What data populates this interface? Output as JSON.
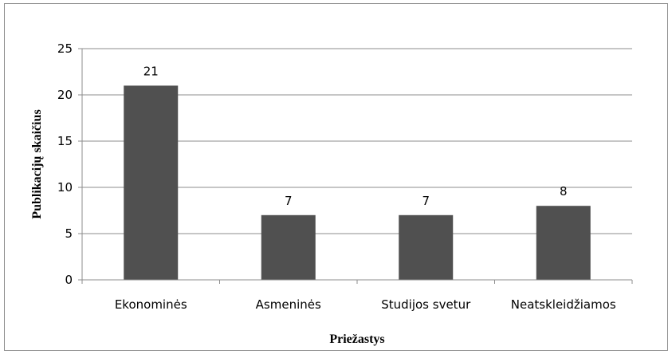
{
  "chart_data": {
    "type": "bar",
    "categories": [
      "Ekonominės",
      "Asmeninės",
      "Studijos svetur",
      "Neatskleidžiamos"
    ],
    "values": [
      21,
      7,
      7,
      8
    ],
    "title": "",
    "xlabel": "Priežastys",
    "ylabel": "Publikacijų skaičius",
    "ylim": [
      0,
      25
    ],
    "yticks": [
      0,
      5,
      10,
      15,
      20,
      25
    ],
    "grid": true,
    "legend": "none",
    "bar_color": "#505050",
    "grid_color": "#8c8c8c"
  }
}
